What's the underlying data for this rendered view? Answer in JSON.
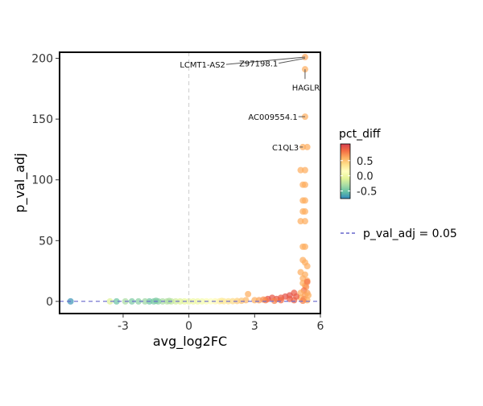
{
  "chart_data": {
    "type": "scatter",
    "title": "",
    "xlabel": "avg_log2FC",
    "ylabel": "p_val_adj",
    "xlim": [
      -5.9,
      6.0
    ],
    "ylim": [
      -10,
      205
    ],
    "x_ticks": [
      {
        "value": -3,
        "label": "-3"
      },
      {
        "value": 0,
        "label": "0"
      },
      {
        "value": 3,
        "label": "3"
      },
      {
        "value": 6,
        "label": "6"
      }
    ],
    "y_ticks": [
      {
        "value": 0,
        "label": "0"
      },
      {
        "value": 50,
        "label": "50"
      },
      {
        "value": 100,
        "label": "100"
      },
      {
        "value": 150,
        "label": "150"
      },
      {
        "value": 200,
        "label": "200"
      }
    ],
    "grid": false,
    "vline_x": 0,
    "hline_y": 0.05,
    "color_legend": {
      "title": "pct_diff",
      "position": "right",
      "range": [
        -0.75,
        1.05
      ],
      "ticks": [
        {
          "value": 0.5,
          "label": "0.5"
        },
        {
          "value": 0.0,
          "label": "0.0"
        },
        {
          "value": -0.5,
          "label": "-0.5"
        }
      ],
      "colors": [
        "#d53e4f",
        "#f46d43",
        "#fdae61",
        "#fee08b",
        "#ffffbf",
        "#e6f598",
        "#abdda4",
        "#66c2a5",
        "#3288bd"
      ]
    },
    "line_legend": {
      "label": "p_val_adj = 0.05",
      "color": "#6666cc",
      "position": "right"
    },
    "labels": [
      {
        "text": "LCMT1-AS2",
        "point": [
          5.3,
          201
        ],
        "anchor": [
          1.7,
          195
        ]
      },
      {
        "text": "Z97198.1",
        "point": [
          5.3,
          200
        ],
        "anchor": [
          4.1,
          196
        ]
      },
      {
        "text": "HAGLR",
        "point": [
          5.3,
          191
        ],
        "anchor": [
          5.3,
          183
        ]
      },
      {
        "text": "AC009554.1",
        "point": [
          5.3,
          152
        ],
        "anchor": [
          5.0,
          152
        ]
      },
      {
        "text": "C1QL3",
        "point": [
          5.2,
          127
        ],
        "anchor": [
          5.05,
          127
        ]
      }
    ],
    "points": [
      [
        5.3,
        201,
        0.62
      ],
      [
        5.3,
        191,
        0.6
      ],
      [
        5.3,
        152,
        0.6
      ],
      [
        5.2,
        127,
        0.6
      ],
      [
        5.4,
        127,
        0.6
      ],
      [
        5.1,
        108,
        0.6
      ],
      [
        5.3,
        108,
        0.6
      ],
      [
        5.2,
        96,
        0.6
      ],
      [
        5.3,
        96,
        0.6
      ],
      [
        5.2,
        83,
        0.6
      ],
      [
        5.3,
        83,
        0.6
      ],
      [
        5.2,
        74,
        0.6
      ],
      [
        5.3,
        74,
        0.6
      ],
      [
        5.1,
        66,
        0.6
      ],
      [
        5.3,
        66,
        0.6
      ],
      [
        5.2,
        45,
        0.6
      ],
      [
        5.3,
        45,
        0.6
      ],
      [
        5.2,
        34,
        0.6
      ],
      [
        5.3,
        32,
        0.6
      ],
      [
        5.4,
        29,
        0.6
      ],
      [
        5.1,
        24,
        0.6
      ],
      [
        5.3,
        22,
        0.6
      ],
      [
        5.2,
        19,
        0.6
      ],
      [
        5.4,
        17,
        0.62
      ],
      [
        5.2,
        15,
        0.6
      ],
      [
        5.3,
        13,
        0.6
      ],
      [
        5.4,
        16,
        0.8
      ],
      [
        5.35,
        12,
        0.7
      ],
      [
        5.25,
        9,
        0.8
      ],
      [
        5.4,
        7,
        0.65
      ],
      [
        5.1,
        7,
        0.6
      ],
      [
        5.3,
        5,
        0.65
      ],
      [
        5.45,
        5,
        0.6
      ],
      [
        5.1,
        3,
        0.6
      ],
      [
        5.25,
        2,
        0.7
      ],
      [
        5.4,
        1,
        0.6
      ],
      [
        5.2,
        0.5,
        0.75
      ],
      [
        4.8,
        7,
        0.9
      ],
      [
        4.6,
        5,
        0.95
      ],
      [
        4.9,
        4,
        0.9
      ],
      [
        4.4,
        4,
        0.95
      ],
      [
        4.2,
        3,
        0.9
      ],
      [
        4.0,
        2,
        0.92
      ],
      [
        3.8,
        3,
        0.92
      ],
      [
        3.6,
        2,
        0.95
      ],
      [
        4.6,
        2,
        0.9
      ],
      [
        4.8,
        1,
        0.88
      ],
      [
        3.5,
        1,
        0.8
      ],
      [
        3.2,
        1,
        0.65
      ],
      [
        3.0,
        1,
        0.6
      ],
      [
        4.2,
        1,
        0.85
      ],
      [
        3.9,
        0.5,
        0.75
      ],
      [
        2.7,
        6,
        0.6
      ],
      [
        2.6,
        1,
        0.55
      ],
      [
        2.4,
        0.5,
        0.5
      ],
      [
        2.2,
        0.3,
        0.45
      ],
      [
        2.0,
        0.2,
        0.4
      ],
      [
        1.8,
        0.1,
        0.35
      ],
      [
        1.6,
        0.1,
        0.3
      ],
      [
        1.4,
        0.1,
        0.25
      ],
      [
        1.2,
        0.05,
        0.2
      ],
      [
        1.0,
        0.05,
        0.15
      ],
      [
        0.8,
        0.05,
        0.1
      ],
      [
        0.6,
        0.0,
        0.05
      ],
      [
        0.4,
        0.0,
        0.0
      ],
      [
        0.2,
        0.0,
        0.0
      ],
      [
        0.0,
        0.0,
        -0.02
      ],
      [
        -0.2,
        0.0,
        -0.05
      ],
      [
        -0.4,
        0.0,
        -0.1
      ],
      [
        -0.6,
        0.0,
        -0.15
      ],
      [
        -0.8,
        0.0,
        -0.2
      ],
      [
        -1.0,
        0.0,
        -0.25
      ],
      [
        -1.2,
        0.0,
        -0.3
      ],
      [
        -1.4,
        0.0,
        -0.4
      ],
      [
        -1.6,
        0.0,
        -0.45
      ],
      [
        -1.8,
        0.0,
        -0.5
      ],
      [
        -2.0,
        0.0,
        -0.35
      ],
      [
        -2.3,
        0.0,
        -0.4
      ],
      [
        -2.6,
        0.0,
        -0.45
      ],
      [
        -2.9,
        0.0,
        -0.3
      ],
      [
        -3.3,
        0.0,
        -0.5
      ],
      [
        -3.6,
        0.0,
        -0.1
      ],
      [
        -5.4,
        0.0,
        -0.7
      ],
      [
        -1.5,
        0.5,
        -0.45
      ],
      [
        -0.9,
        0.3,
        -0.3
      ],
      [
        1.5,
        0.4,
        0.3
      ],
      [
        3.4,
        1.5,
        0.7
      ]
    ]
  }
}
